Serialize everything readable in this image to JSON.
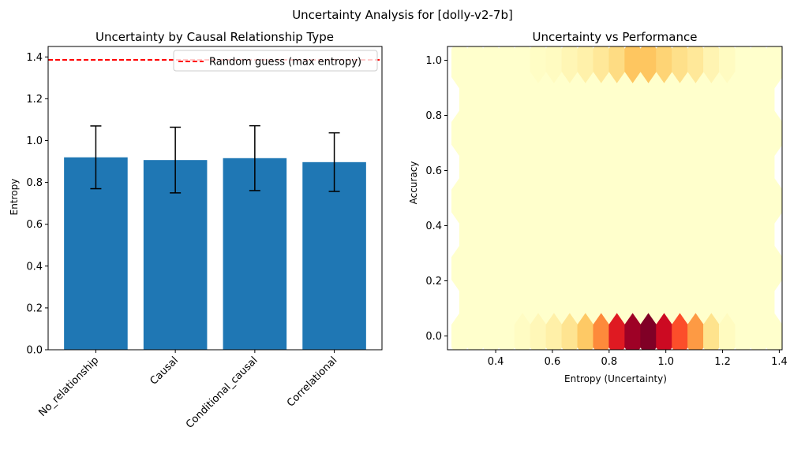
{
  "suptitle": "Uncertainty Analysis for [dolly-v2-7b]",
  "chart_data": [
    {
      "type": "bar",
      "title": "Uncertainty by Causal Relationship Type",
      "xlabel": "",
      "ylabel": "Entropy",
      "categories": [
        "No_relationship",
        "Causal",
        "Conditional_causal",
        "Correlational"
      ],
      "values": [
        0.92,
        0.907,
        0.916,
        0.897
      ],
      "error": [
        0.15,
        0.157,
        0.155,
        0.14
      ],
      "ylim": [
        0,
        1.45
      ],
      "yticks": [
        "0.0",
        "0.2",
        "0.4",
        "0.6",
        "0.8",
        "1.0",
        "1.2",
        "1.4"
      ],
      "yticks_values": [
        0,
        0.2,
        0.4,
        0.6,
        0.8,
        1.0,
        1.2,
        1.4
      ],
      "bar_color": "#1f77b4",
      "reference_line": {
        "value": 1.386,
        "label": "Random guess (max entropy)",
        "color": "#ff0000",
        "style": "dashed"
      },
      "legend_position": "top-right"
    },
    {
      "type": "heatmap",
      "subtype": "hexbin",
      "title": "Uncertainty vs Performance",
      "xlabel": "Entropy (Uncertainty)",
      "ylabel": "Accuracy",
      "xlim": [
        0.23,
        1.41
      ],
      "ylim": [
        -0.05,
        1.05
      ],
      "xticks": [
        "0.4",
        "0.6",
        "0.8",
        "1.0",
        "1.2",
        "1.4"
      ],
      "xticks_values": [
        0.4,
        0.6,
        0.8,
        1.0,
        1.2,
        1.4
      ],
      "yticks": [
        "0.0",
        "0.2",
        "0.4",
        "0.6",
        "0.8",
        "1.0"
      ],
      "yticks_values": [
        0,
        0.2,
        0.4,
        0.6,
        0.8,
        1.0
      ],
      "colormap": "YlOrRd",
      "background_color": "#ffffcc",
      "row_x_min": 0.2725,
      "row_x_max": 1.3825,
      "x_step": 0.0555,
      "y_step": 0.1225,
      "cells": [
        {
          "x": 0.4945,
          "y": 0.0,
          "color": "#fffcc3"
        },
        {
          "x": 0.55,
          "y": 0.0,
          "color": "#fff7b8"
        },
        {
          "x": 0.6055,
          "y": 0.0,
          "color": "#fff0a8"
        },
        {
          "x": 0.661,
          "y": 0.0,
          "color": "#fee491"
        },
        {
          "x": 0.7165,
          "y": 0.0,
          "color": "#fec965"
        },
        {
          "x": 0.772,
          "y": 0.0,
          "color": "#fd8a3b"
        },
        {
          "x": 0.8275,
          "y": 0.0,
          "color": "#df1a22"
        },
        {
          "x": 0.883,
          "y": 0.0,
          "color": "#9e0126"
        },
        {
          "x": 0.9385,
          "y": 0.0,
          "color": "#800026"
        },
        {
          "x": 0.994,
          "y": 0.0,
          "color": "#cc0a22"
        },
        {
          "x": 1.0495,
          "y": 0.0,
          "color": "#fc4e2a"
        },
        {
          "x": 1.105,
          "y": 0.0,
          "color": "#fd9a44"
        },
        {
          "x": 1.1605,
          "y": 0.0,
          "color": "#fee38d"
        },
        {
          "x": 1.216,
          "y": 0.0,
          "color": "#fffbc0"
        },
        {
          "x": 0.55,
          "y": 1.0,
          "color": "#fffdc5"
        },
        {
          "x": 0.6055,
          "y": 1.0,
          "color": "#fffbc1"
        },
        {
          "x": 0.661,
          "y": 1.0,
          "color": "#fff6b5"
        },
        {
          "x": 0.7165,
          "y": 1.0,
          "color": "#fff1aa"
        },
        {
          "x": 0.772,
          "y": 1.0,
          "color": "#ffe899"
        },
        {
          "x": 0.8275,
          "y": 1.0,
          "color": "#fedc83"
        },
        {
          "x": 0.883,
          "y": 1.0,
          "color": "#fec660"
        },
        {
          "x": 0.9385,
          "y": 1.0,
          "color": "#fec660"
        },
        {
          "x": 0.994,
          "y": 1.0,
          "color": "#fed475"
        },
        {
          "x": 1.0495,
          "y": 1.0,
          "color": "#fee08a"
        },
        {
          "x": 1.105,
          "y": 1.0,
          "color": "#ffe899"
        },
        {
          "x": 1.1605,
          "y": 1.0,
          "color": "#fff4b2"
        },
        {
          "x": 1.216,
          "y": 1.0,
          "color": "#fffbc1"
        }
      ]
    }
  ]
}
